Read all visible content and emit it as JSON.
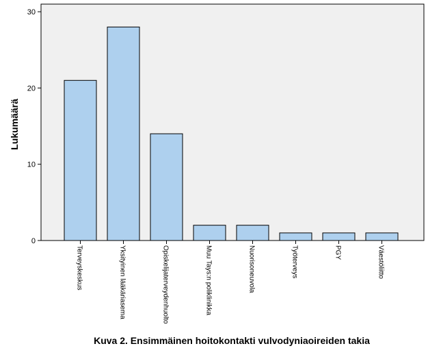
{
  "chart_data": {
    "type": "bar",
    "title": "",
    "caption": "Kuva 2. Ensimmäinen hoitokontakti vulvodyniaoireiden takia",
    "xlabel": "",
    "ylabel": "Lukumäärä",
    "ylim": [
      0,
      31
    ],
    "yticks": [
      0,
      10,
      20,
      30
    ],
    "grid": false,
    "categories": [
      "Terveyskeskus",
      "Yksityinen lääkäriasema",
      "Opiskelijaterveydenhuolto",
      "Muu Tays:n poliklinikka",
      "Nuorisoneuvola",
      "Työterveys",
      "PGY",
      "Väestöliitto"
    ],
    "values": [
      21,
      28,
      14,
      2,
      2,
      1,
      1,
      1
    ],
    "colors": {
      "bar_fill": "#aed0ee",
      "bar_stroke": "#000000",
      "plot_background": "#f0f0f0",
      "axis": "#000000"
    }
  }
}
